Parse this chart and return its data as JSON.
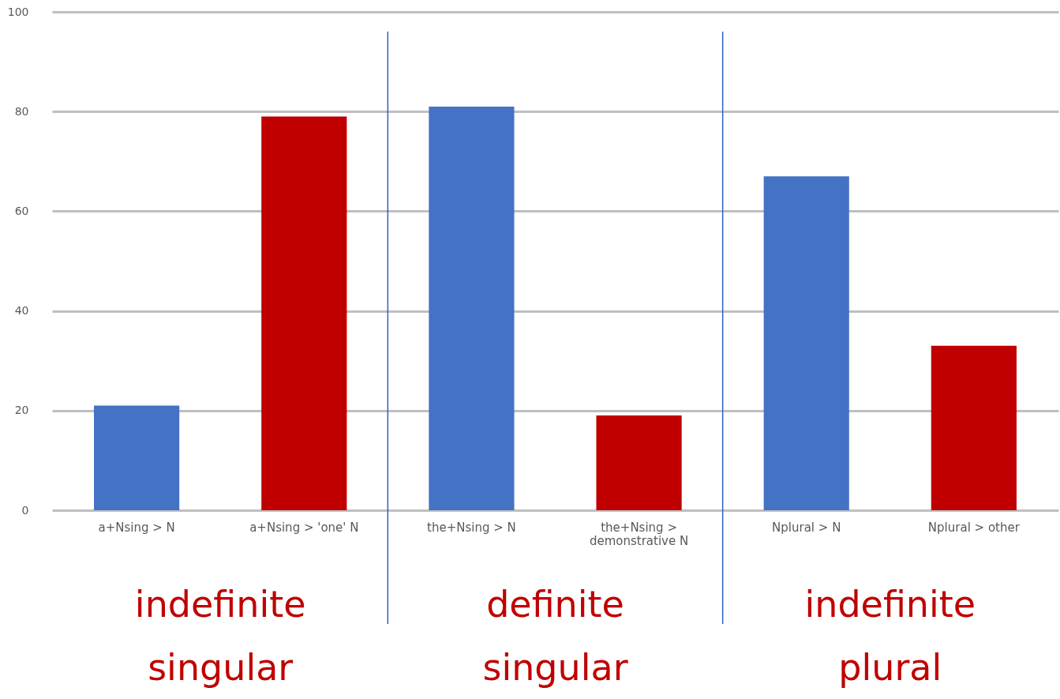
{
  "chart_data": {
    "type": "bar",
    "categories": [
      "a+Nsing > N",
      "a+Nsing > 'one' N",
      "the+Nsing > N",
      "the+Nsing >\ndemonstrative N",
      "Nplural > N",
      "Nplural > other"
    ],
    "values": [
      21,
      79,
      81,
      19,
      67,
      33
    ],
    "colors": [
      "#4472c4",
      "#c00000",
      "#4472c4",
      "#c00000",
      "#4472c4",
      "#c00000"
    ],
    "ylim": [
      0,
      100
    ],
    "yticks": [
      0,
      20,
      40,
      60,
      80,
      100
    ],
    "grid": "y",
    "annotations": [
      "indefinite\nsingular",
      "definite\nsingular",
      "indefinite\nplural"
    ]
  }
}
